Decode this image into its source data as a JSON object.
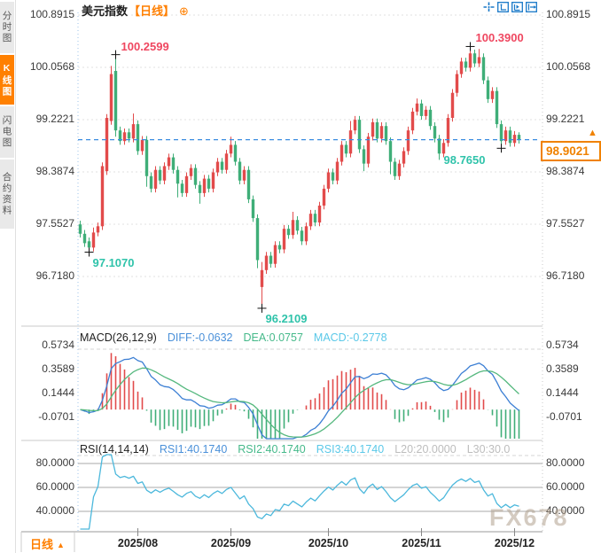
{
  "sidebar": {
    "items": [
      {
        "label": "分时图",
        "active": false
      },
      {
        "label": "K线图",
        "active": true
      },
      {
        "label": "闪电图",
        "active": false
      },
      {
        "label": "合约资料",
        "active": false
      }
    ]
  },
  "header": {
    "title": "美元指数",
    "period_tag": "【日线】",
    "add_indicator_icon": "circled-plus",
    "toolbar_icons": [
      "crosshair",
      "fit-vertical-axis",
      "auto-scale",
      "pan-right"
    ]
  },
  "main_chart": {
    "y_axis_labels": [
      "100.8915",
      "100.0568",
      "99.2221",
      "98.3874",
      "97.5527",
      "96.7180"
    ],
    "current_price_label": "98.9021"
  },
  "macd_panel": {
    "title": "MACD(26,12,9)",
    "diff_label": "DIFF:-0.0632",
    "dea_label": "DEA:0.0757",
    "macd_label": "MACD:-0.2778",
    "axis_labels": [
      "0.5734",
      "0.3589",
      "0.1444",
      "-0.0701"
    ]
  },
  "rsi_panel": {
    "title": "RSI(14,14,14)",
    "rsi1_label": "RSI1:40.1740",
    "rsi2_label": "RSI2:40.1740",
    "rsi3_label": "RSI3:40.1740",
    "l20_label": "L20:20.0000",
    "l30_label": "L30:30.0",
    "axis_labels": [
      "80.0000",
      "60.0000",
      "40.0000"
    ]
  },
  "footer": {
    "period_label": "日线",
    "period_arrow": "▲"
  },
  "watermark": "FX678",
  "colors": {
    "up_candle": "#e24b4b",
    "down_candle": "#3fae78",
    "accent_orange": "#ff7f00",
    "price_box_orange": "#f08200",
    "annotation_red": "#ef4760",
    "annotation_teal": "#2fc3aa",
    "current_line_blue": "#3b8de0",
    "diff_line": "#3c7fd4",
    "dea_line": "#55b87e",
    "rsi_line": "#4cb8dc",
    "grid_light": "#e2e2e2",
    "grid_solid": "#a8a8a8",
    "separator": "#c9c9c9",
    "axis_text": "#3a3a3a"
  },
  "chart_data": {
    "type": "candlestick",
    "symbol": "美元指数",
    "period": "日线",
    "y_axis": {
      "labels": [
        "100.8915",
        "100.0568",
        "99.2221",
        "98.3874",
        "97.5527",
        "96.7180"
      ],
      "values": [
        100.8915,
        100.0568,
        99.2221,
        98.3874,
        97.5527,
        96.718
      ]
    },
    "current_price": 98.9021,
    "x_ticks": [
      {
        "label": "2025/08",
        "index": 13
      },
      {
        "label": "2025/09",
        "index": 34
      },
      {
        "label": "2025/10",
        "index": 56
      },
      {
        "label": "2025/11",
        "index": 77
      },
      {
        "label": "2025/12",
        "index": 98
      }
    ],
    "annotations": [
      {
        "text": "100.2599",
        "value": 100.2599,
        "index": 8,
        "color": "#ef4760",
        "pos": "above-right"
      },
      {
        "text": "100.3900",
        "value": 100.39,
        "index": 88,
        "color": "#ef4760",
        "pos": "above-right"
      },
      {
        "text": "97.1070",
        "value": 97.107,
        "index": 2,
        "color": "#2fc3aa",
        "pos": "below-right"
      },
      {
        "text": "96.2109",
        "value": 96.2109,
        "index": 41,
        "color": "#2fc3aa",
        "pos": "below-right"
      },
      {
        "text": "98.7650",
        "value": 98.765,
        "index": 95,
        "color": "#2fc3aa",
        "pos": "below-left"
      }
    ],
    "indicators": {
      "macd": {
        "params": [
          26,
          12,
          9
        ],
        "diff": -0.0632,
        "dea": 0.0757,
        "macd": -0.2778,
        "axis": [
          0.5734,
          0.3589,
          0.1444,
          -0.0701
        ]
      },
      "rsi": {
        "params": [
          14,
          14,
          14
        ],
        "rsi1": 40.174,
        "rsi2": 40.174,
        "rsi3": 40.174,
        "l20": 20.0,
        "l30": 30.0,
        "axis": [
          80,
          60,
          40
        ]
      }
    },
    "ohlc": [
      [
        97.55,
        97.61,
        97.34,
        97.4
      ],
      [
        97.4,
        97.46,
        97.19,
        97.25
      ],
      [
        97.28,
        97.34,
        97.107,
        97.18
      ],
      [
        97.18,
        97.5,
        97.12,
        97.42
      ],
      [
        97.42,
        97.58,
        97.36,
        97.52
      ],
      [
        97.52,
        98.54,
        97.46,
        98.48
      ],
      [
        98.4,
        99.31,
        98.34,
        99.25
      ],
      [
        99.2,
        100.08,
        99.14,
        99.95
      ],
      [
        100.0,
        100.2599,
        98.95,
        99.05
      ],
      [
        99.05,
        99.11,
        98.82,
        98.88
      ],
      [
        98.88,
        99.08,
        98.82,
        99.02
      ],
      [
        99.02,
        99.08,
        98.86,
        98.92
      ],
      [
        98.92,
        99.32,
        98.86,
        99.15
      ],
      [
        99.15,
        99.21,
        98.66,
        98.72
      ],
      [
        98.72,
        98.96,
        98.66,
        98.9
      ],
      [
        98.9,
        98.96,
        98.15,
        98.32
      ],
      [
        98.32,
        98.38,
        98.06,
        98.12
      ],
      [
        98.12,
        98.48,
        98.06,
        98.42
      ],
      [
        98.42,
        98.48,
        98.19,
        98.25
      ],
      [
        98.25,
        98.54,
        98.19,
        98.48
      ],
      [
        98.48,
        98.68,
        98.42,
        98.62
      ],
      [
        98.62,
        98.68,
        98.36,
        98.42
      ],
      [
        98.42,
        98.48,
        97.98,
        98.2
      ],
      [
        98.2,
        98.26,
        97.99,
        98.05
      ],
      [
        98.05,
        98.38,
        97.99,
        98.32
      ],
      [
        98.32,
        98.51,
        98.26,
        98.45
      ],
      [
        98.45,
        98.51,
        98.12,
        98.18
      ],
      [
        98.18,
        98.24,
        97.88,
        98.05
      ],
      [
        98.05,
        98.34,
        97.99,
        98.28
      ],
      [
        98.28,
        98.34,
        98.06,
        98.12
      ],
      [
        98.12,
        98.44,
        98.06,
        98.38
      ],
      [
        98.38,
        98.61,
        98.32,
        98.55
      ],
      [
        98.55,
        98.61,
        98.36,
        98.42
      ],
      [
        98.42,
        98.74,
        98.36,
        98.68
      ],
      [
        98.68,
        98.95,
        98.62,
        98.82
      ],
      [
        98.82,
        98.88,
        98.49,
        98.55
      ],
      [
        98.55,
        98.61,
        98.19,
        98.25
      ],
      [
        98.25,
        98.48,
        98.19,
        98.42
      ],
      [
        98.42,
        98.48,
        97.89,
        97.95
      ],
      [
        97.95,
        98.01,
        97.59,
        97.65
      ],
      [
        97.65,
        97.71,
        96.85,
        96.98
      ],
      [
        96.55,
        96.95,
        96.2109,
        96.82
      ],
      [
        96.82,
        97.11,
        96.76,
        97.05
      ],
      [
        97.05,
        97.11,
        96.86,
        96.92
      ],
      [
        96.92,
        97.28,
        96.86,
        97.22
      ],
      [
        97.22,
        97.28,
        97.09,
        97.15
      ],
      [
        97.15,
        97.54,
        97.09,
        97.48
      ],
      [
        97.48,
        97.54,
        97.32,
        97.38
      ],
      [
        97.38,
        97.75,
        97.32,
        97.62
      ],
      [
        97.62,
        97.68,
        97.39,
        97.45
      ],
      [
        97.45,
        97.51,
        97.22,
        97.28
      ],
      [
        97.28,
        97.58,
        97.22,
        97.52
      ],
      [
        97.52,
        97.78,
        97.46,
        97.72
      ],
      [
        97.72,
        97.78,
        97.52,
        97.58
      ],
      [
        97.58,
        97.91,
        97.52,
        97.85
      ],
      [
        97.85,
        98.18,
        97.79,
        98.12
      ],
      [
        98.12,
        98.44,
        98.06,
        98.38
      ],
      [
        98.38,
        98.44,
        98.19,
        98.25
      ],
      [
        98.25,
        98.61,
        98.19,
        98.55
      ],
      [
        98.55,
        98.88,
        98.49,
        98.82
      ],
      [
        98.82,
        98.88,
        98.62,
        98.68
      ],
      [
        98.68,
        99.2,
        98.62,
        99.05
      ],
      [
        99.05,
        99.28,
        98.99,
        99.22
      ],
      [
        99.22,
        99.28,
        98.69,
        98.75
      ],
      [
        98.75,
        98.81,
        98.4,
        98.52
      ],
      [
        98.52,
        99.01,
        98.46,
        98.95
      ],
      [
        98.95,
        99.24,
        98.89,
        99.18
      ],
      [
        99.18,
        99.24,
        98.86,
        98.92
      ],
      [
        98.92,
        99.18,
        98.86,
        99.12
      ],
      [
        99.12,
        99.18,
        98.82,
        98.88
      ],
      [
        98.88,
        98.94,
        98.35,
        98.55
      ],
      [
        98.55,
        98.61,
        98.26,
        98.32
      ],
      [
        98.32,
        98.58,
        98.26,
        98.52
      ],
      [
        98.52,
        98.78,
        98.46,
        98.72
      ],
      [
        98.72,
        99.11,
        98.66,
        99.05
      ],
      [
        99.05,
        99.41,
        98.99,
        99.35
      ],
      [
        99.35,
        99.56,
        99.29,
        99.48
      ],
      [
        99.48,
        99.54,
        99.22,
        99.28
      ],
      [
        99.28,
        99.44,
        99.22,
        99.38
      ],
      [
        99.38,
        99.44,
        99.06,
        99.12
      ],
      [
        99.12,
        99.18,
        98.86,
        98.92
      ],
      [
        98.92,
        98.98,
        98.58,
        98.68
      ],
      [
        98.68,
        98.91,
        98.62,
        98.85
      ],
      [
        98.85,
        99.31,
        98.79,
        99.25
      ],
      [
        99.25,
        99.71,
        99.19,
        99.65
      ],
      [
        99.65,
        100.01,
        99.59,
        99.95
      ],
      [
        99.95,
        100.21,
        99.89,
        100.15
      ],
      [
        100.15,
        100.21,
        99.99,
        100.05
      ],
      [
        100.05,
        100.39,
        99.99,
        100.28
      ],
      [
        100.28,
        100.34,
        100.06,
        100.12
      ],
      [
        100.12,
        100.35,
        100.06,
        100.22
      ],
      [
        100.22,
        100.28,
        99.79,
        99.85
      ],
      [
        99.85,
        99.91,
        99.49,
        99.55
      ],
      [
        99.55,
        99.74,
        99.49,
        99.68
      ],
      [
        99.68,
        99.74,
        99.09,
        99.15
      ],
      [
        99.15,
        99.21,
        98.765,
        98.88
      ],
      [
        98.88,
        99.11,
        98.82,
        99.05
      ],
      [
        99.05,
        99.11,
        98.79,
        98.85
      ],
      [
        98.85,
        99.04,
        98.79,
        98.98
      ],
      [
        98.98,
        99.02,
        98.84,
        98.9021
      ]
    ]
  }
}
